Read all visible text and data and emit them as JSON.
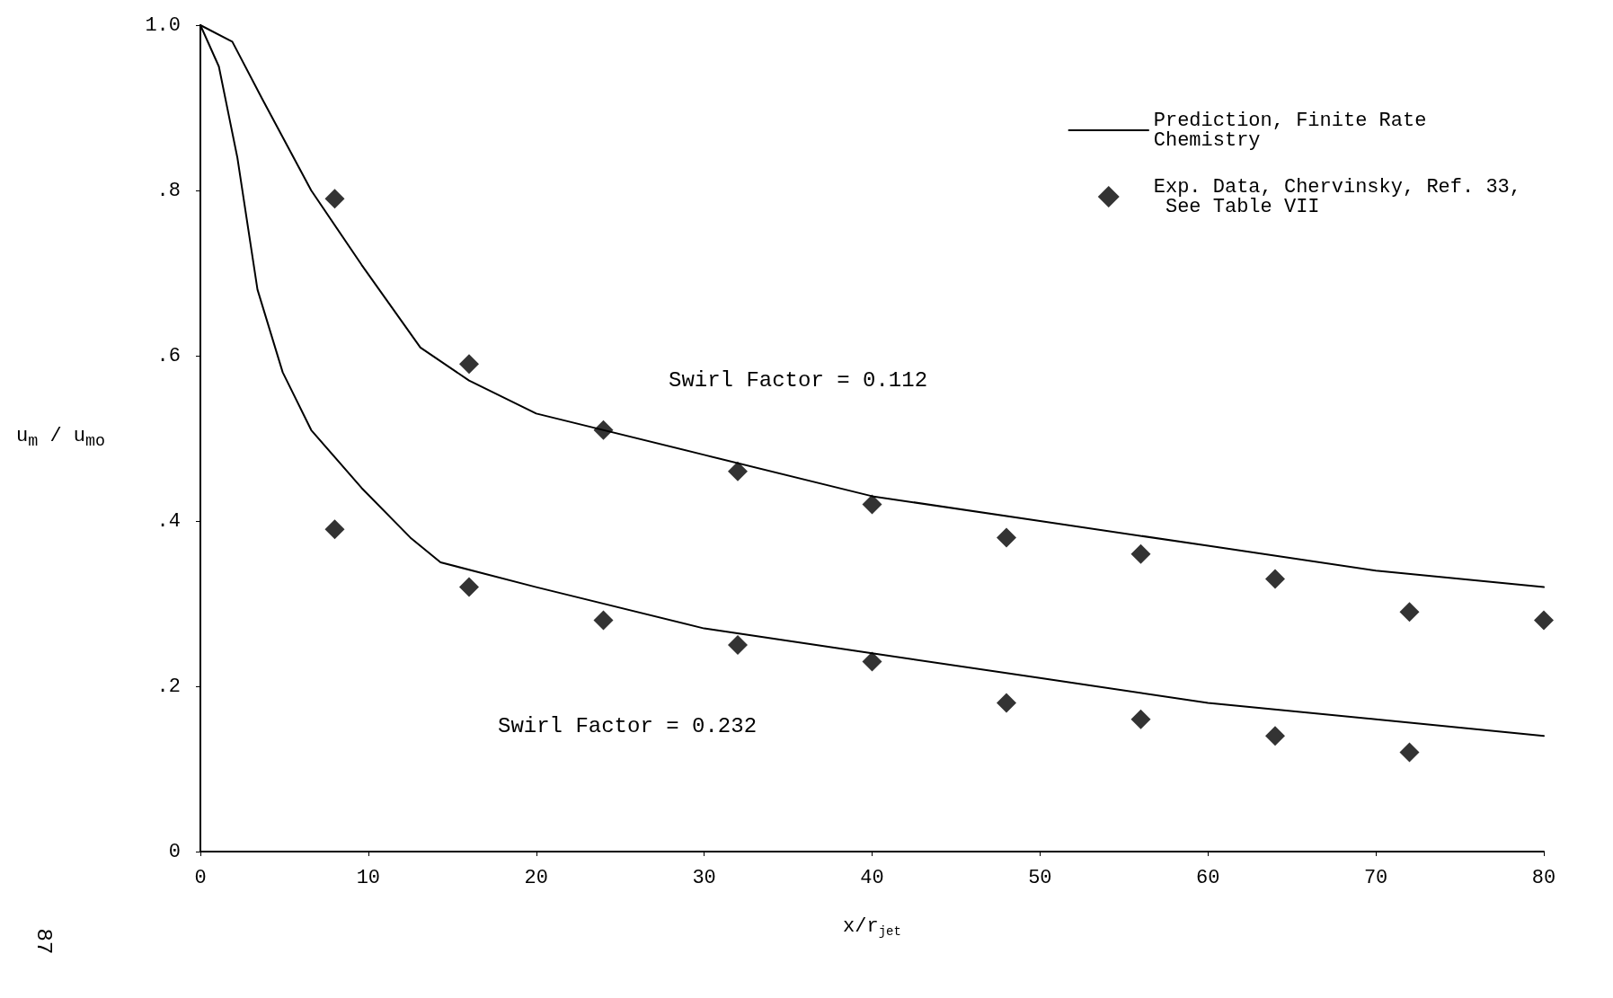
{
  "chart_data": {
    "type": "line",
    "xlabel": "x/r$_{jet}$",
    "ylabel": "u$_{m}$ / u$_{mo}$",
    "xlim": [
      0,
      80
    ],
    "xticks": [
      0,
      10,
      20,
      30,
      40,
      50,
      60,
      70,
      80
    ],
    "ylim": [
      0,
      1
    ],
    "yticks": [
      {
        "value": 0,
        "label": "0"
      },
      {
        "value": 0.2,
        "label": ".2"
      },
      {
        "value": 0.4,
        "label": ".4"
      },
      {
        "value": 0.6,
        "label": ".6"
      },
      {
        "value": 0.8,
        "label": ".8"
      },
      {
        "value": 1,
        "label": "1.0"
      }
    ],
    "grid": false,
    "legend": "top right",
    "series": [
      {
        "name": "Prediction, Finite Rate Chemistry",
        "color": "#000000",
        "marker": "none",
        "line_style": "solid",
        "x": [
          0,
          1.9,
          3.7,
          6.6,
          9.6,
          13.1,
          16,
          20,
          30,
          40,
          50,
          60,
          70,
          80
        ],
        "values": [
          1.0,
          0.98,
          0.91,
          0.8,
          0.71,
          0.61,
          0.57,
          0.53,
          0.48,
          0.43,
          0.4,
          0.37,
          0.34,
          0.32
        ]
      },
      {
        "color": "#000000",
        "marker": "none",
        "line_style": "solid",
        "x": [
          0,
          1.1,
          2.2,
          3.4,
          4.9,
          6.6,
          9.6,
          12.5,
          14.3,
          20,
          30,
          40,
          50,
          60,
          70,
          80
        ],
        "values": [
          1.0,
          0.95,
          0.84,
          0.68,
          0.58,
          0.51,
          0.44,
          0.38,
          0.35,
          0.32,
          0.27,
          0.24,
          0.21,
          0.18,
          0.16,
          0.14
        ]
      },
      {
        "name": "Exp. Data, Chervinsky, Ref. 33, See Table VII",
        "type": "scatter",
        "color": "#000000",
        "marker": "diamond",
        "x": [
          8,
          16,
          24,
          32,
          40,
          48,
          56,
          64,
          72,
          80
        ],
        "values": [
          0.79,
          0.59,
          0.51,
          0.46,
          0.42,
          0.38,
          0.36,
          0.33,
          0.29,
          0.28
        ]
      },
      {
        "type": "scatter",
        "color": "#000000",
        "marker": "diamond",
        "x": [
          8,
          16,
          24,
          32,
          40,
          48,
          56,
          64,
          72
        ],
        "values": [
          0.39,
          0.32,
          0.28,
          0.25,
          0.23,
          0.18,
          0.16,
          0.14,
          0.12
        ]
      }
    ],
    "annotations": [
      "Swirl Factor = 0.112",
      "Swirl Factor = 0.232",
      "87"
    ]
  }
}
